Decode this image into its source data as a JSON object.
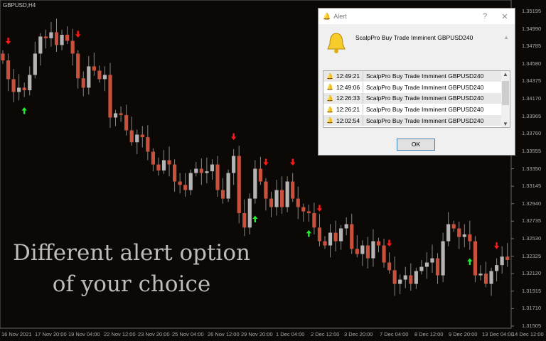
{
  "symbol": "GBPUSD,H4",
  "overlay": {
    "line1": "Different alert option",
    "line2": "of your choice"
  },
  "colors": {
    "bull": "#b4b4b4",
    "bear": "#c9513b",
    "arrow_down": "#ff1a1a",
    "arrow_up": "#22ee33",
    "grid": "#555"
  },
  "price_axis": [
    "1.35195",
    "1.34990",
    "1.34785",
    "1.34580",
    "1.34375",
    "1.34170",
    "1.33965",
    "1.33760",
    "1.33555",
    "1.33350",
    "1.33145",
    "1.32940",
    "1.32735",
    "1.32530",
    "1.32325",
    "1.32120",
    "1.31915",
    "1.31710",
    "1.31505"
  ],
  "time_axis": [
    "16 Nov 2021",
    "17 Nov 20:00",
    "19 Nov 04:00",
    "22 Nov 12:00",
    "23 Nov 20:00",
    "25 Nov 04:00",
    "26 Nov 12:00",
    "29 Nov 20:00",
    "1 Dec 04:00",
    "2 Dec 12:00",
    "3 Dec 20:00",
    "7 Dec 04:00",
    "8 Dec 12:00",
    "9 Dec 20:00",
    "13 Dec 04:00",
    "14 Dec 12:00"
  ],
  "closes": [
    1.3462,
    1.344,
    1.3425,
    1.343,
    1.3427,
    1.3445,
    1.347,
    1.349,
    1.3488,
    1.3495,
    1.348,
    1.3492,
    1.3485,
    1.347,
    1.3441,
    1.343,
    1.3455,
    1.345,
    1.344,
    1.3445,
    1.3395,
    1.34,
    1.3398,
    1.338,
    1.3366,
    1.3375,
    1.3372,
    1.3355,
    1.334,
    1.3333,
    1.3345,
    1.334,
    1.332,
    1.3316,
    1.331,
    1.333,
    1.3335,
    1.333,
    1.3332,
    1.334,
    1.331,
    1.33,
    1.333,
    1.335,
    1.3283,
    1.3266,
    1.33,
    1.3335,
    1.332,
    1.33,
    1.329,
    1.331,
    1.329,
    1.332,
    1.33,
    1.329,
    1.3285,
    1.3283,
    1.3266,
    1.325,
    1.3245,
    1.326,
    1.325,
    1.3265,
    1.327,
    1.3241,
    1.3235,
    1.3245,
    1.323,
    1.325,
    1.3245,
    1.3225,
    1.3216,
    1.32,
    1.3205,
    1.321,
    1.32,
    1.3215,
    1.322,
    1.3225,
    1.323,
    1.321,
    1.325,
    1.327,
    1.3265,
    1.3255,
    1.3258,
    1.325,
    1.321,
    1.3212,
    1.32,
    1.3215,
    1.3222,
    1.3232,
    1.3228
  ],
  "arrows": [
    {
      "i": 1,
      "dir": "down"
    },
    {
      "i": 14,
      "dir": "down"
    },
    {
      "i": 43,
      "dir": "down"
    },
    {
      "i": 49,
      "dir": "down"
    },
    {
      "i": 54,
      "dir": "down"
    },
    {
      "i": 59,
      "dir": "down"
    },
    {
      "i": 72,
      "dir": "down"
    },
    {
      "i": 92,
      "dir": "down"
    },
    {
      "i": 4,
      "dir": "up"
    },
    {
      "i": 47,
      "dir": "up"
    },
    {
      "i": 57,
      "dir": "up"
    },
    {
      "i": 87,
      "dir": "up"
    }
  ],
  "alert": {
    "title": "Alert",
    "help": "?",
    "close": "✕",
    "message": "ScalpPro Buy Trade Imminent GBPUSD240",
    "rows": [
      {
        "time": "12:49:21",
        "text": "ScalpPro Buy Trade Imminent GBPUSD240"
      },
      {
        "time": "12:49:06",
        "text": "ScalpPro Buy Trade Imminent GBPUSD240"
      },
      {
        "time": "12:26:33",
        "text": "ScalpPro Buy Trade Imminent GBPUSD240"
      },
      {
        "time": "12:26:21",
        "text": "ScalpPro Buy Trade Imminent GBPUSD240"
      },
      {
        "time": "12:02:54",
        "text": "ScalpPro Buy Trade Imminent GBPUSD240"
      }
    ],
    "ok": "OK"
  }
}
